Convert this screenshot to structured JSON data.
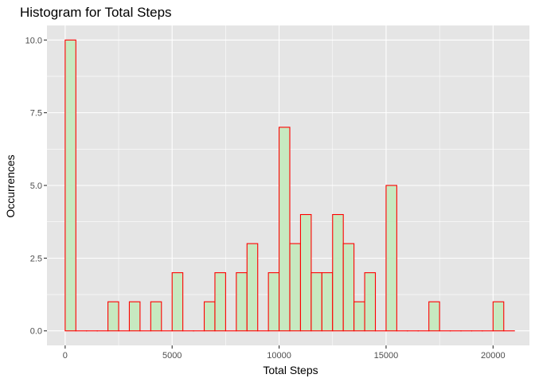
{
  "chart_data": {
    "type": "bar",
    "title": "Histogram for Total Steps",
    "xlabel": "Total Steps",
    "ylabel": "Occurrences",
    "xlim": [
      -850,
      21700
    ],
    "ylim": [
      -0.5,
      10.5
    ],
    "binwidth": 500,
    "x_ticks": [
      {
        "value": 0,
        "label": "0"
      },
      {
        "value": 5000,
        "label": "5000"
      },
      {
        "value": 10000,
        "label": "10000"
      },
      {
        "value": 15000,
        "label": "15000"
      },
      {
        "value": 20000,
        "label": "20000"
      }
    ],
    "y_ticks": [
      {
        "value": 0,
        "label": "0.0"
      },
      {
        "value": 2.5,
        "label": "2.5"
      },
      {
        "value": 5,
        "label": "5.0"
      },
      {
        "value": 7.5,
        "label": "7.5"
      },
      {
        "value": 10,
        "label": "10.0"
      }
    ],
    "bin_starts": [
      0,
      500,
      1000,
      1500,
      2000,
      2500,
      3000,
      3500,
      4000,
      4500,
      5000,
      5500,
      6000,
      6500,
      7000,
      7500,
      8000,
      8500,
      9000,
      9500,
      10000,
      10500,
      11000,
      11500,
      12000,
      12500,
      13000,
      13500,
      14000,
      14500,
      15000,
      15500,
      16000,
      16500,
      17000,
      17500,
      18000,
      18500,
      19000,
      19500,
      20000,
      20500
    ],
    "values": [
      10,
      0,
      0,
      0,
      1,
      0,
      1,
      0,
      1,
      0,
      2,
      0,
      0,
      1,
      2,
      0,
      2,
      3,
      0,
      2,
      7,
      3,
      4,
      2,
      2,
      4,
      3,
      1,
      2,
      0,
      5,
      0,
      0,
      0,
      1,
      0,
      0,
      0,
      0,
      0,
      1,
      0
    ],
    "bar_fill": "#c7e9c0",
    "bar_outline": "#ff0000",
    "panel_background": "#e5e5e5",
    "grid_color": "#ffffff",
    "grid": true
  }
}
